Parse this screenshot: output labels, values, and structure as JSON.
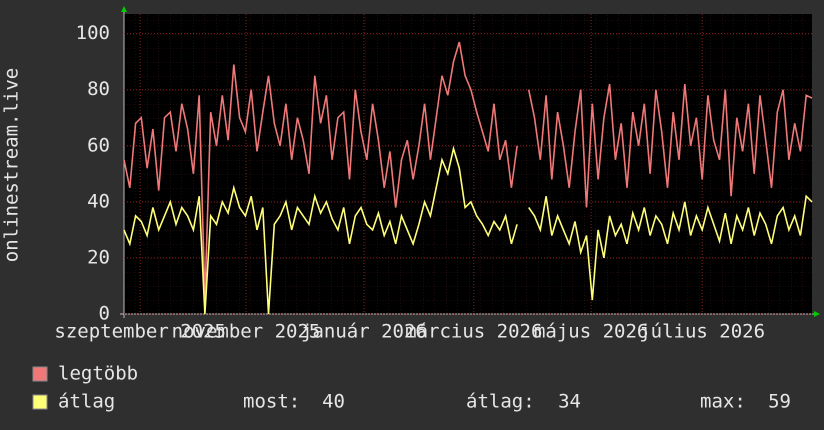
{
  "chart_data": {
    "type": "line",
    "y_label": "onlinestream.live",
    "xlim": [
      0,
      119
    ],
    "xticks": [
      {
        "value": 2.8,
        "label": "szeptember 2025"
      },
      {
        "value": 21.1,
        "label": "november 2025"
      },
      {
        "value": 41.5,
        "label": "január 2026"
      },
      {
        "value": 60.5,
        "label": "március 2026"
      },
      {
        "value": 80.8,
        "label": "május 2026"
      },
      {
        "value": 100,
        "label": "július 2026"
      }
    ],
    "ylim": [
      0,
      107
    ],
    "yticks": [
      0,
      20,
      40,
      60,
      80,
      100
    ],
    "grid": true,
    "series": [
      {
        "name": "legtöbb",
        "color": "#f07878",
        "values": [
          55,
          45,
          68,
          70,
          52,
          66,
          44,
          70,
          72,
          58,
          75,
          66,
          50,
          78,
          5,
          72,
          60,
          78,
          62,
          89,
          70,
          65,
          80,
          58,
          72,
          85,
          68,
          60,
          75,
          55,
          70,
          62,
          50,
          85,
          68,
          78,
          55,
          70,
          72,
          48,
          80,
          65,
          55,
          75,
          62,
          45,
          58,
          38,
          55,
          62,
          48,
          60,
          75,
          55,
          70,
          85,
          78,
          90,
          97,
          85,
          80,
          72,
          65,
          58,
          75,
          55,
          62,
          45,
          60,
          null,
          80,
          70,
          55,
          78,
          48,
          72,
          60,
          45,
          65,
          80,
          38,
          75,
          48,
          70,
          82,
          55,
          68,
          45,
          72,
          60,
          75,
          50,
          80,
          65,
          45,
          72,
          55,
          82,
          60,
          70,
          48,
          78,
          62,
          55,
          80,
          42,
          70,
          58,
          75,
          50,
          78,
          62,
          45,
          72,
          80,
          55,
          68,
          58,
          78,
          77
        ]
      },
      {
        "name": "átlag",
        "color": "#ffff78",
        "values": [
          30,
          25,
          35,
          33,
          28,
          38,
          30,
          35,
          40,
          32,
          38,
          35,
          30,
          42,
          0,
          35,
          32,
          40,
          36,
          45,
          38,
          35,
          42,
          30,
          38,
          0,
          32,
          35,
          40,
          30,
          38,
          35,
          32,
          42,
          36,
          40,
          34,
          30,
          38,
          25,
          35,
          38,
          32,
          30,
          36,
          28,
          33,
          25,
          35,
          30,
          25,
          32,
          40,
          35,
          45,
          55,
          50,
          59,
          52,
          38,
          40,
          35,
          32,
          28,
          33,
          30,
          35,
          25,
          32,
          null,
          38,
          35,
          30,
          42,
          28,
          35,
          30,
          25,
          33,
          22,
          28,
          5,
          30,
          20,
          35,
          28,
          32,
          25,
          36,
          30,
          38,
          28,
          35,
          32,
          25,
          36,
          30,
          40,
          28,
          35,
          30,
          38,
          32,
          26,
          36,
          25,
          35,
          30,
          38,
          28,
          36,
          32,
          25,
          35,
          38,
          30,
          35,
          28,
          42,
          40
        ]
      }
    ],
    "stats": [
      {
        "label": "most:",
        "value": 40
      },
      {
        "label": "átlag:",
        "value": 34
      },
      {
        "label": "max:",
        "value": 59
      }
    ]
  }
}
